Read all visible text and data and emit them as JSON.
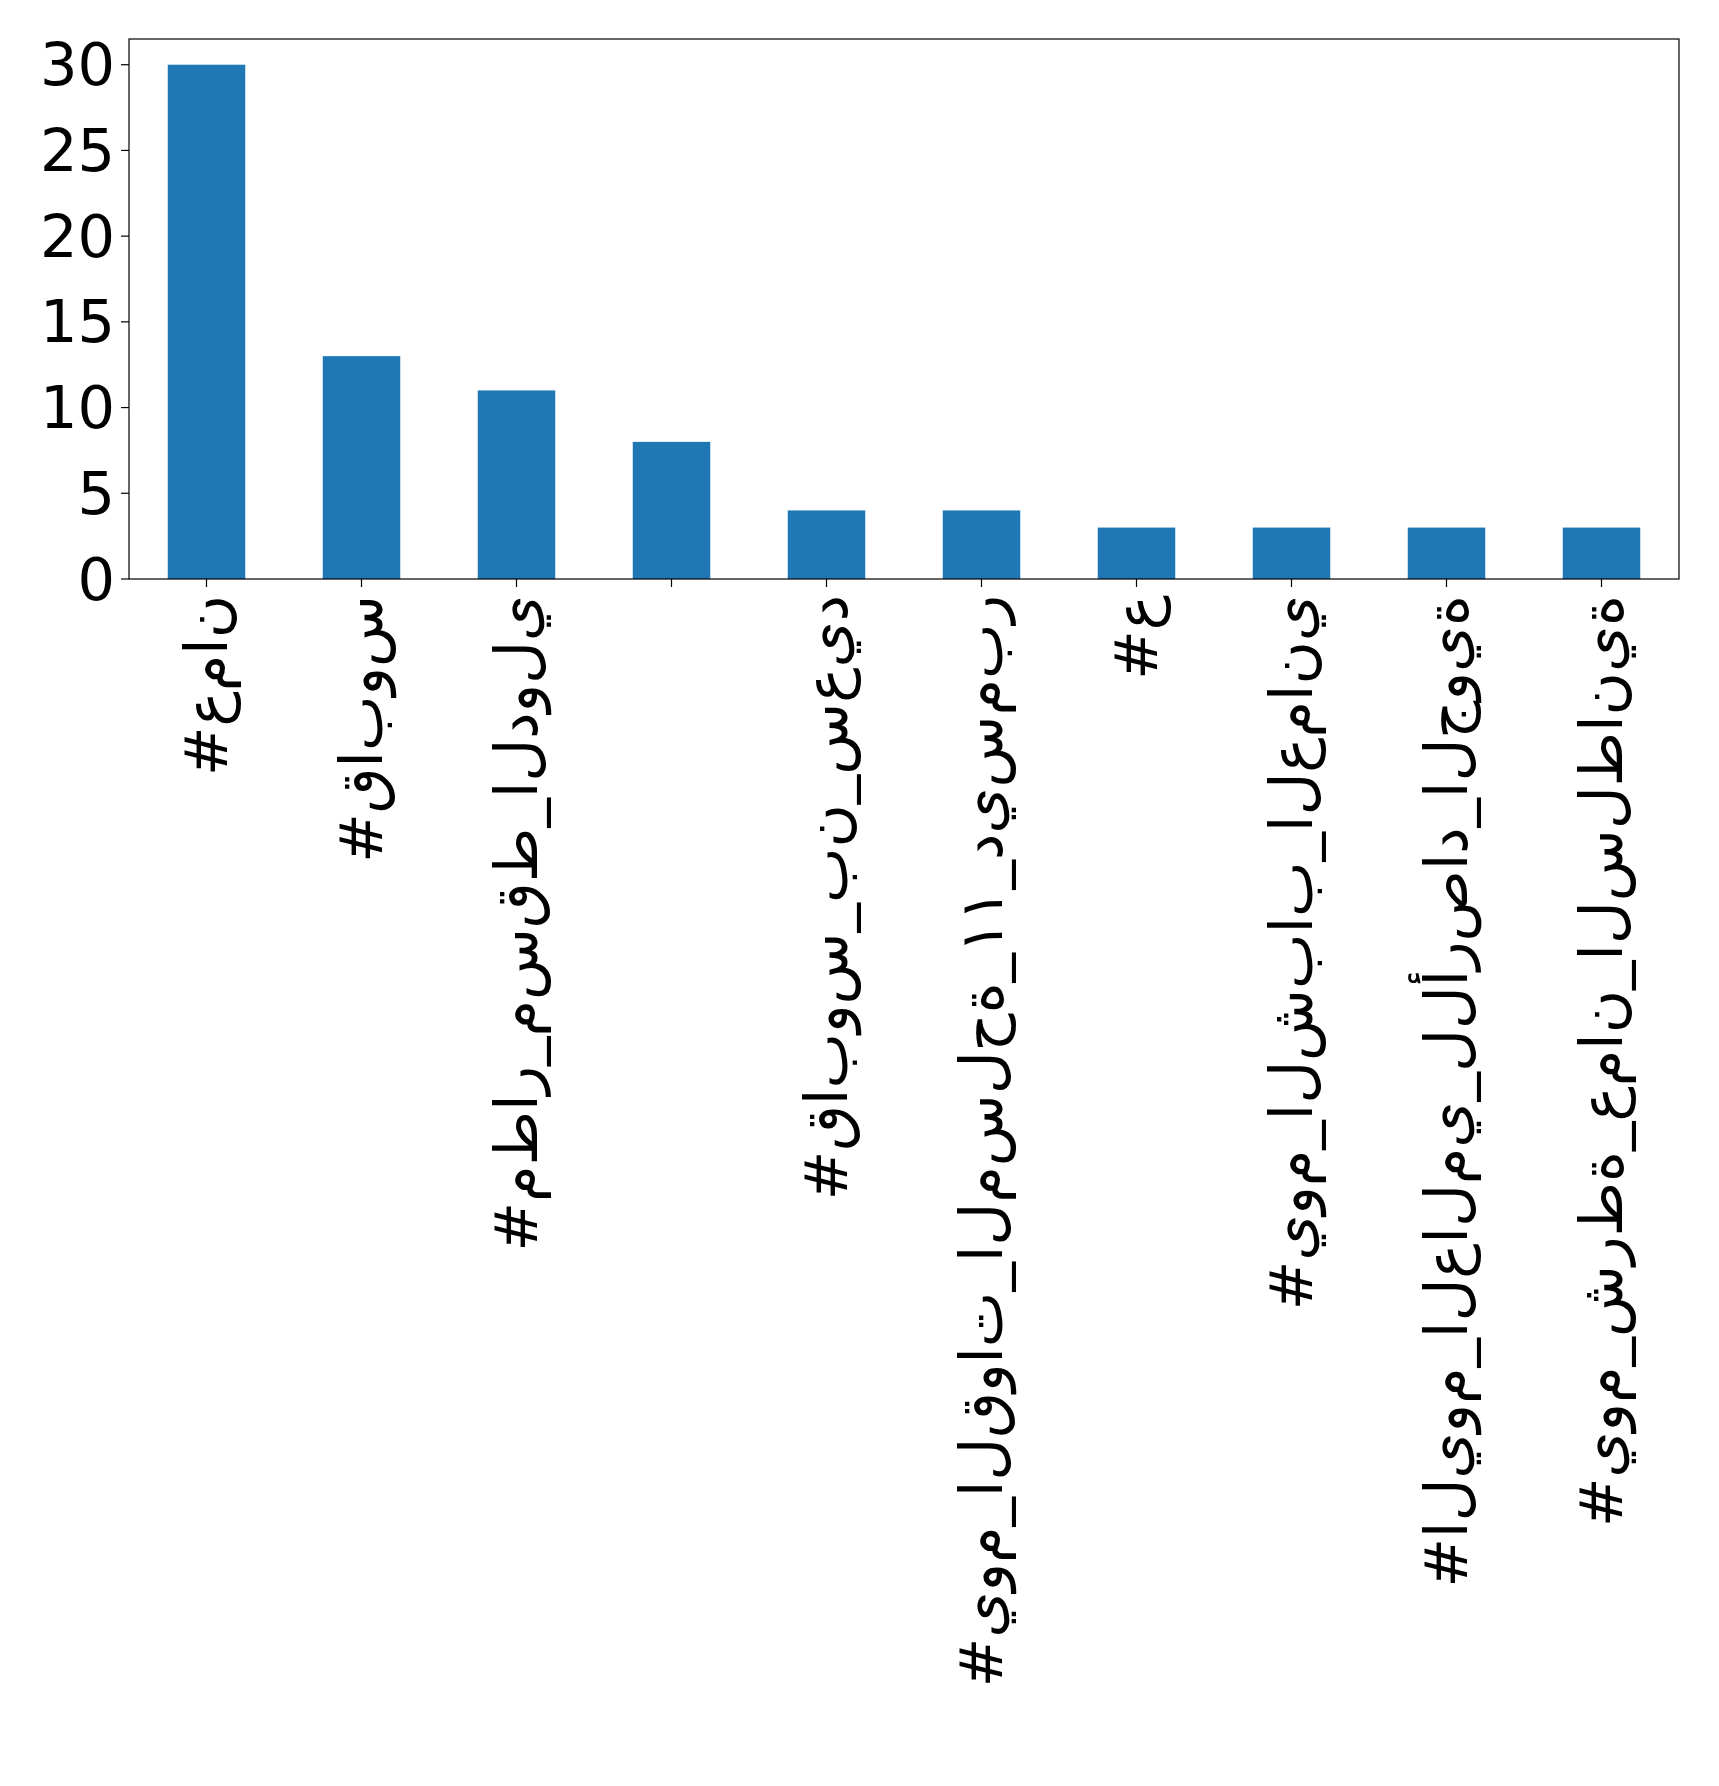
{
  "chart_data": {
    "type": "bar",
    "categories": [
      "#عمان",
      "#قابوس",
      "#مطار_مسقط_الدولي",
      null,
      "#قابوس_بن_سعيد",
      "#يوم_القوات_المسلحة_١١_ديسمبر",
      "#ع",
      "#يوم_الشباب_العماني",
      "#اليوم_العالمي_للأرصاد_الجوية",
      "#يوم_شرطة_عمان_السلطانية"
    ],
    "values": [
      30,
      13,
      11,
      8,
      4,
      4,
      3,
      3,
      3,
      3
    ],
    "color": "#1f77b4",
    "ylim": [
      0,
      31.5
    ],
    "yticks": [
      0,
      5,
      10,
      15,
      20,
      25,
      30
    ]
  }
}
